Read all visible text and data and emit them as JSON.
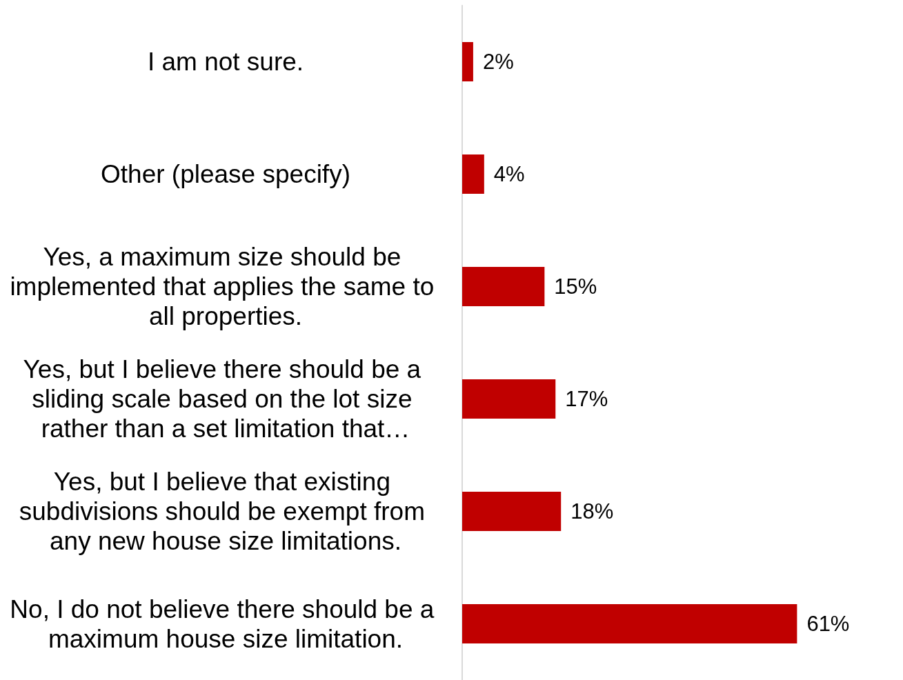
{
  "chart_data": {
    "type": "bar",
    "orientation": "horizontal",
    "categories": [
      "I am not sure.",
      "Other (please specify)",
      "Yes, a maximum size should be implemented that applies the same to all properties.",
      "Yes, but I believe there should be a sliding scale based on the lot size rather than a set limitation that…",
      "Yes, but I believe that existing subdivisions should be exempt from any new house size limitations.",
      "No, I do not believe there should be a maximum house size limitation."
    ],
    "values": [
      2,
      4,
      15,
      17,
      18,
      61
    ],
    "value_labels": [
      "2%",
      "4%",
      "15%",
      "17%",
      "18%",
      "61%"
    ],
    "color": "#c00000",
    "grid": false
  }
}
